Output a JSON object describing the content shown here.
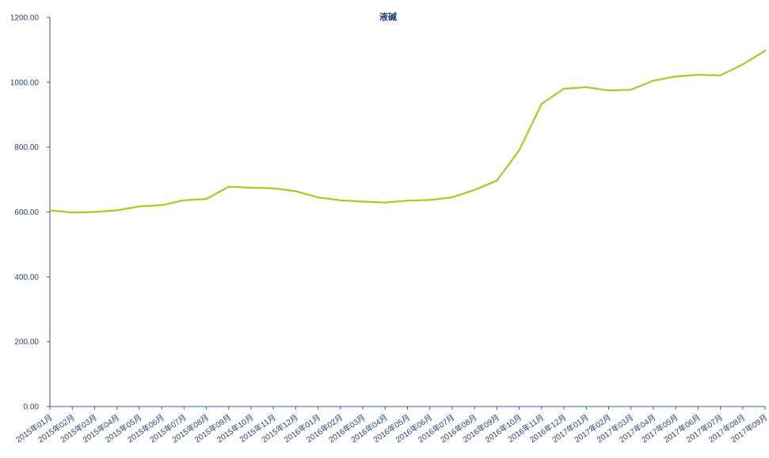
{
  "chart_data": {
    "type": "line",
    "title": "液碱",
    "xlabel": "",
    "ylabel": "",
    "ylim": [
      0,
      1200
    ],
    "grid": false,
    "legend": "none",
    "line_color": "#b5c41e",
    "axis_color": "#3a5a96",
    "yticks": [
      "0.00",
      "200.00",
      "400.00",
      "600.00",
      "800.00",
      "1000.00",
      "1200.00"
    ],
    "categories": [
      "2015年01月",
      "2015年02月",
      "2015年03月",
      "2015年04月",
      "2015年05月",
      "2015年06月",
      "2015年07月",
      "2015年08月",
      "2015年09月",
      "2015年10月",
      "2015年11月",
      "2015年12月",
      "2016年01月",
      "2016年02月",
      "2016年03月",
      "2016年04月",
      "2016年05月",
      "2016年06月",
      "2016年07月",
      "2016年08月",
      "2016年09月",
      "2016年10月",
      "2016年11月",
      "2016年12月",
      "2017年01月",
      "2017年02月",
      "2017年03月",
      "2017年04月",
      "2017年05月",
      "2017年06月",
      "2017年07月",
      "2017年08月",
      "2017年09月"
    ],
    "series": [
      {
        "values": [
          605,
          598,
          600,
          605,
          617,
          621,
          636,
          640,
          678,
          675,
          673,
          664,
          645,
          636,
          632,
          629,
          635,
          637,
          645,
          668,
          697,
          790,
          933,
          980,
          985,
          975,
          977,
          1005,
          1018,
          1023,
          1021,
          1055,
          1097
        ]
      }
    ]
  }
}
